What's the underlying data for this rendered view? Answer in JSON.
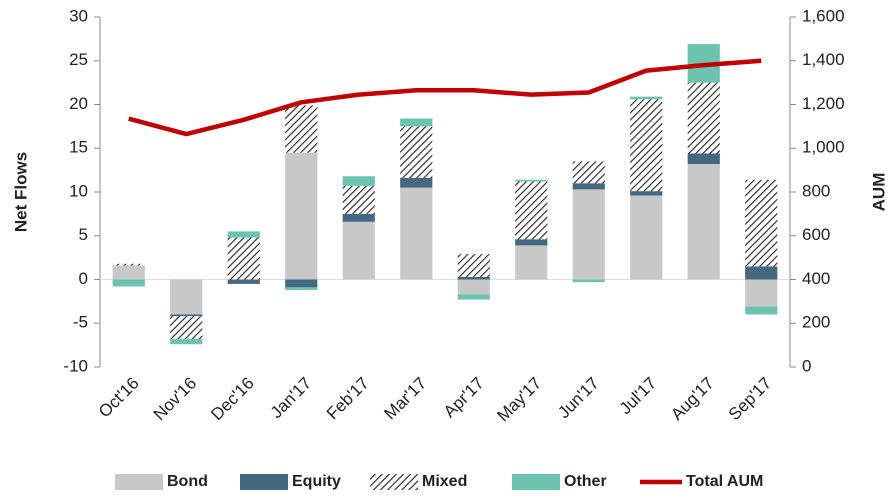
{
  "chart_data": {
    "type": "bar",
    "stacked": true,
    "y_label": "Net Flows",
    "y2_label": "AUM",
    "categories": [
      "Oct'16",
      "Nov'16",
      "Dec'16",
      "Jan'17",
      "Feb'17",
      "Mar'17",
      "Apr'17",
      "May'17",
      "Jun'17",
      "Jul'17",
      "Aug'17",
      "Sep'17"
    ],
    "series": [
      {
        "name": "Bond",
        "type": "bar",
        "color": "#c8c8c8",
        "values": [
          1.6,
          -4.0,
          0,
          14.5,
          6.6,
          10.5,
          -1.7,
          3.9,
          10.3,
          9.6,
          13.2,
          -3.1
        ]
      },
      {
        "name": "Equity",
        "type": "bar",
        "color": "#44687f",
        "values": [
          0,
          -0.2,
          -0.5,
          -0.9,
          0.9,
          1.1,
          0.3,
          0.7,
          0.7,
          0.5,
          1.2,
          1.5
        ]
      },
      {
        "name": "Mixed",
        "type": "bar",
        "color": "#222222",
        "pattern": "hatch",
        "values": [
          0.2,
          -2.6,
          4.8,
          5.4,
          3.2,
          5.9,
          2.6,
          6.6,
          2.5,
          10.5,
          8.1,
          9.9
        ]
      },
      {
        "name": "Other",
        "type": "bar",
        "color": "#6cc4b0",
        "values": [
          -0.8,
          -0.6,
          0.7,
          -0.3,
          1.1,
          0.9,
          -0.6,
          0.2,
          -0.3,
          0.3,
          4.4,
          -0.9
        ]
      },
      {
        "name": "Total AUM",
        "type": "line",
        "axis": "y2",
        "color": "#c00000",
        "values": [
          1135,
          1065,
          1130,
          1210,
          1245,
          1265,
          1265,
          1245,
          1255,
          1355,
          1380,
          1400
        ]
      }
    ],
    "ylim": [
      -10,
      30
    ],
    "yticks": [
      -10,
      -5,
      0,
      5,
      10,
      15,
      20,
      25,
      30
    ],
    "y2lim": [
      0,
      1600
    ],
    "y2ticks": [
      0,
      200,
      400,
      600,
      800,
      {
        "value": 1000,
        "label": "1,000"
      },
      {
        "value": 1200,
        "label": "1,200"
      },
      {
        "value": 1400,
        "label": "1,400"
      },
      {
        "value": 1600,
        "label": "1,600"
      }
    ],
    "legend": "bottom"
  }
}
